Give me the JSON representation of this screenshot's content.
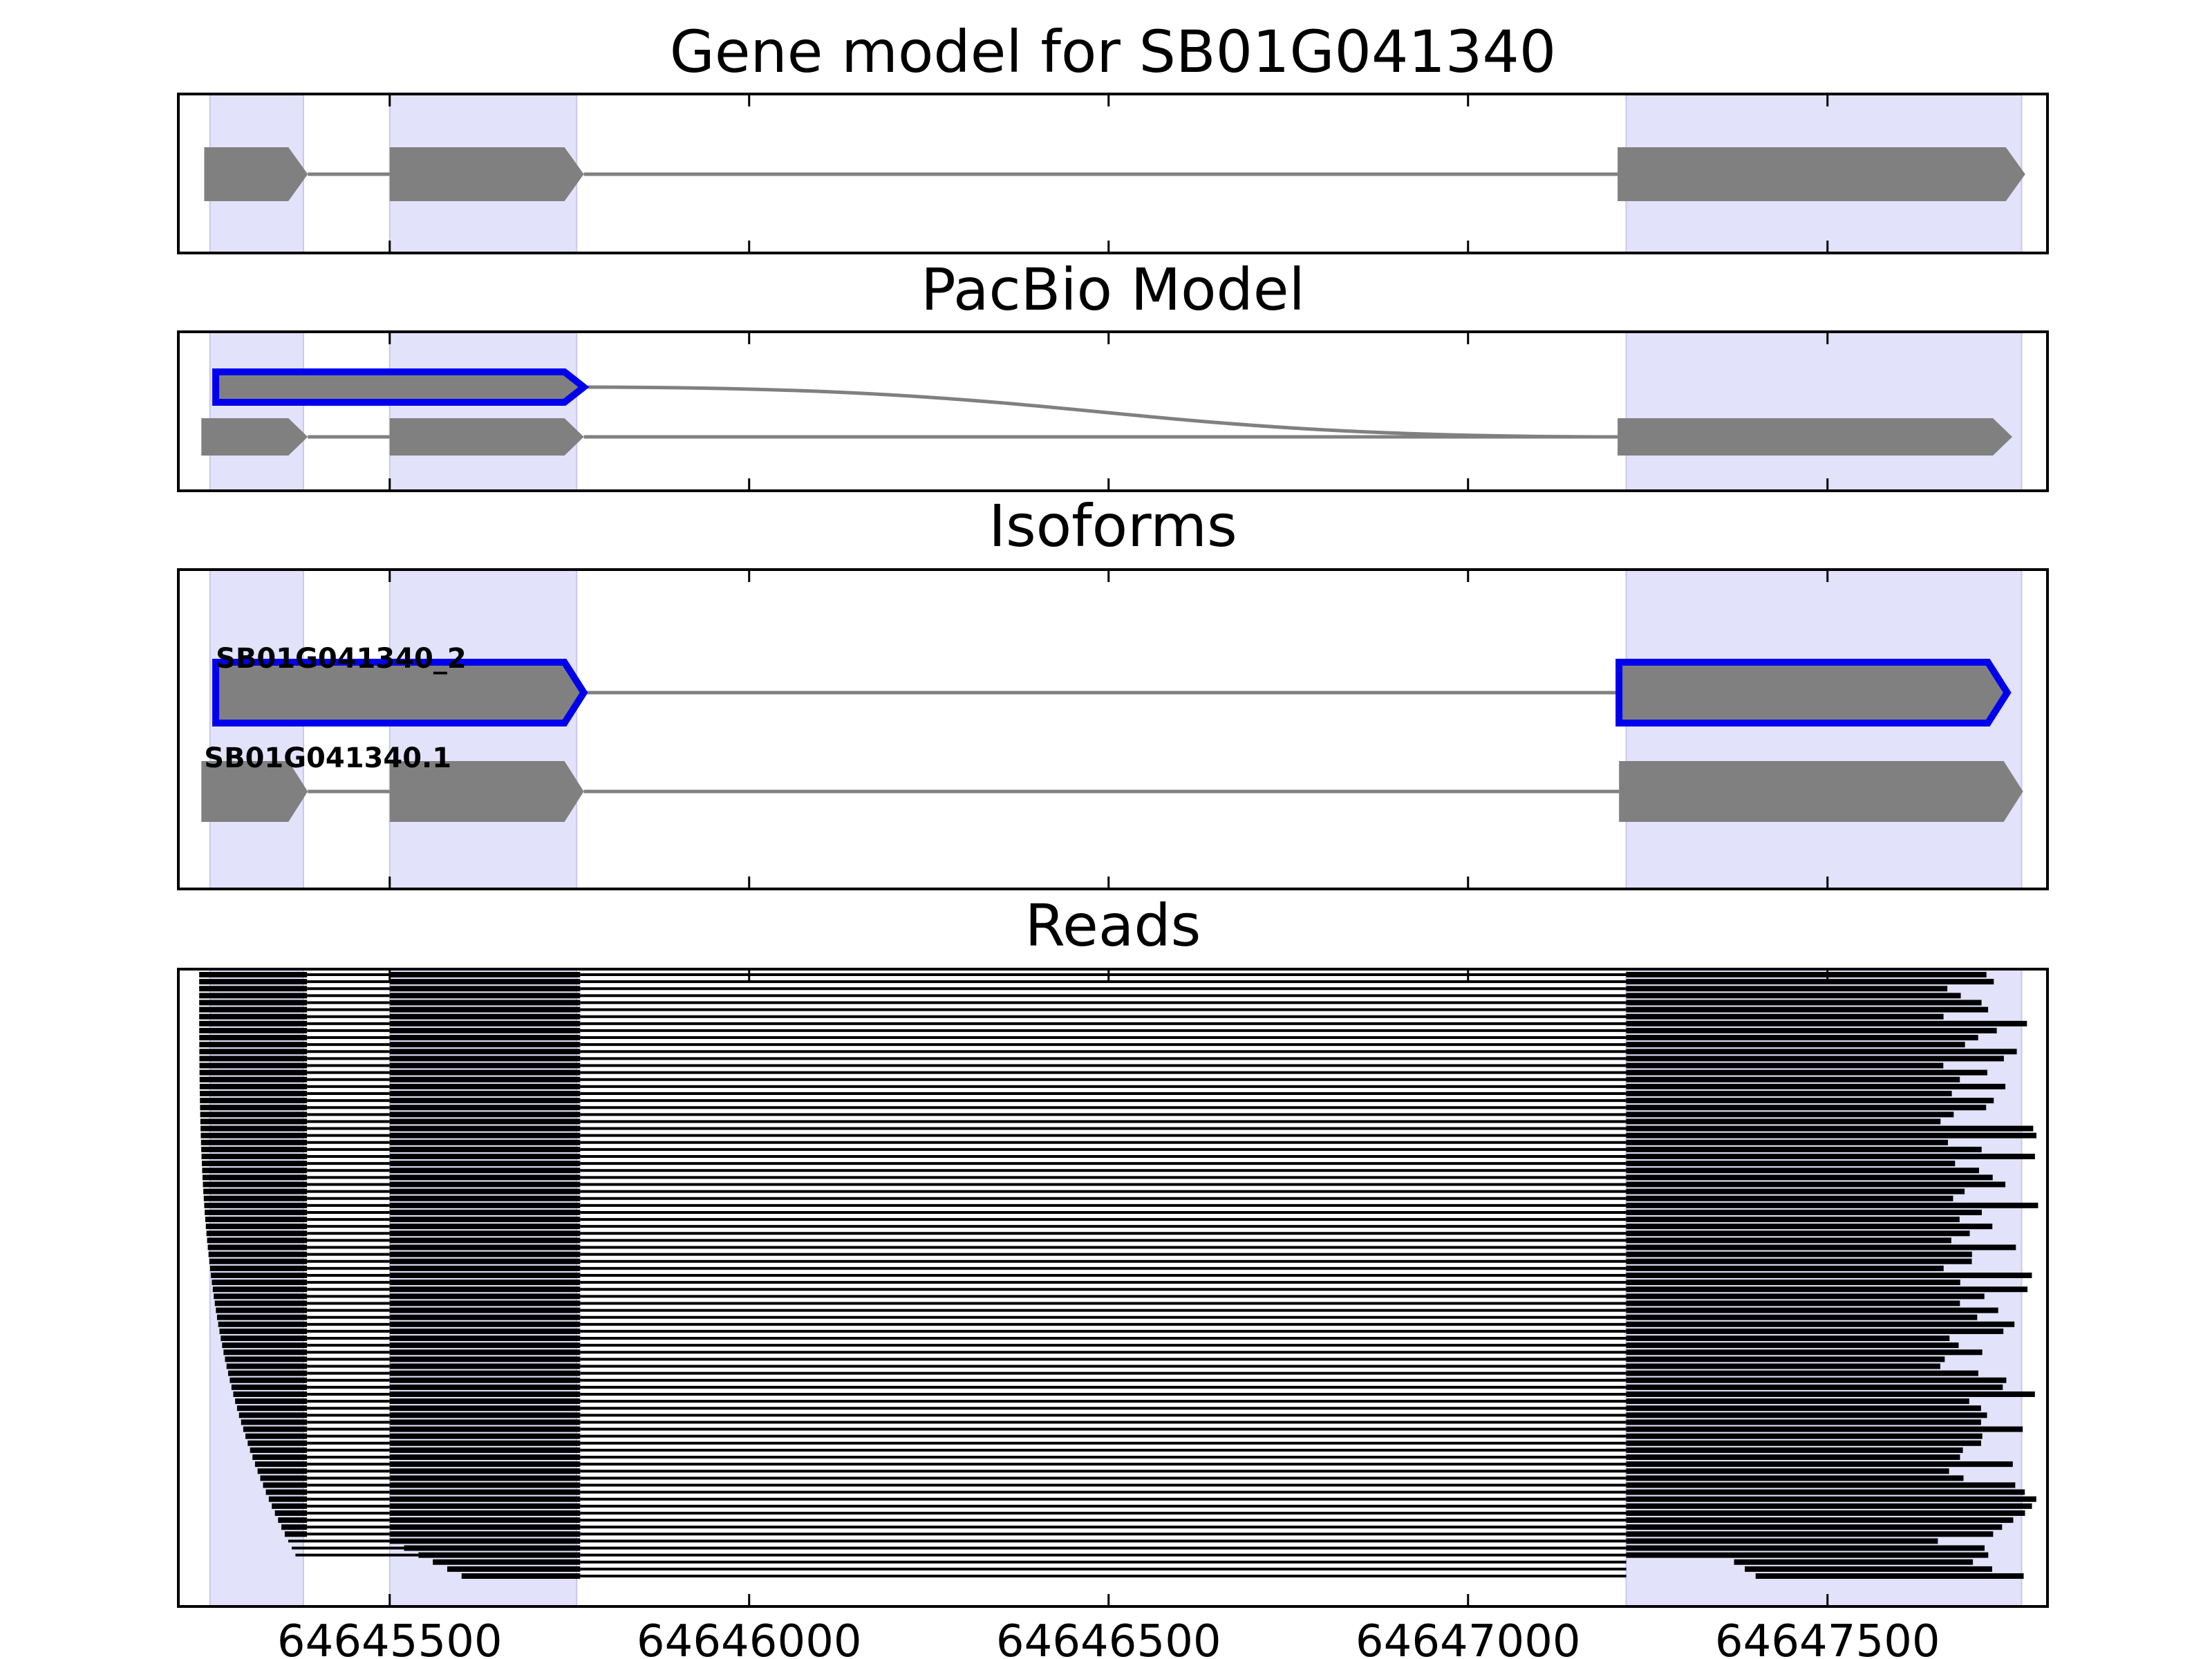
{
  "chart_data": {
    "type": "gene-structure",
    "x_ticks": [
      "64645500",
      "64646000",
      "64646500",
      "64647000",
      "64647500"
    ],
    "xlim": [
      64645206,
      64647806
    ],
    "exons": [
      [
        64645250,
        64645380
      ],
      [
        64645500,
        64645760
      ],
      [
        64647220,
        64647770
      ]
    ],
    "colors": {
      "shade": "#e2e2fb",
      "feature": "#808080",
      "highlight": "#0000ee",
      "read": "#000000"
    },
    "panels": [
      {
        "title": "Gene model for SB01G041340",
        "models": [
          {
            "segments": [
              [
                64645242,
                64645386
              ],
              [
                64645500,
                64645770
              ],
              [
                64647208,
                64647775
              ]
            ],
            "highlight": false
          }
        ]
      },
      {
        "title": "PacBio Model",
        "models": [
          {
            "segments": [
              [
                64645258,
                64645770
              ]
            ],
            "highlight": true,
            "joins_to": [
              64647208,
              64647757
            ]
          },
          {
            "segments": [
              [
                64645238,
                64645386
              ],
              [
                64645500,
                64645770
              ],
              [
                64647208,
                64647757
              ]
            ],
            "highlight": false
          }
        ]
      },
      {
        "title": "Isoforms",
        "models": [
          {
            "label": "SB01G041340_2",
            "segments": [
              [
                64645258,
                64645770
              ],
              [
                64647210,
                64647750
              ]
            ],
            "highlight": true
          },
          {
            "label": "SB01G041340.1",
            "segments": [
              [
                64645238,
                64645386
              ],
              [
                64645500,
                64645770
              ],
              [
                64647210,
                64647772
              ]
            ],
            "highlight": false
          }
        ]
      },
      {
        "title": "Reads",
        "read_count": 87,
        "read_start_min": 64645235,
        "read_end_max": 64647795
      }
    ]
  }
}
